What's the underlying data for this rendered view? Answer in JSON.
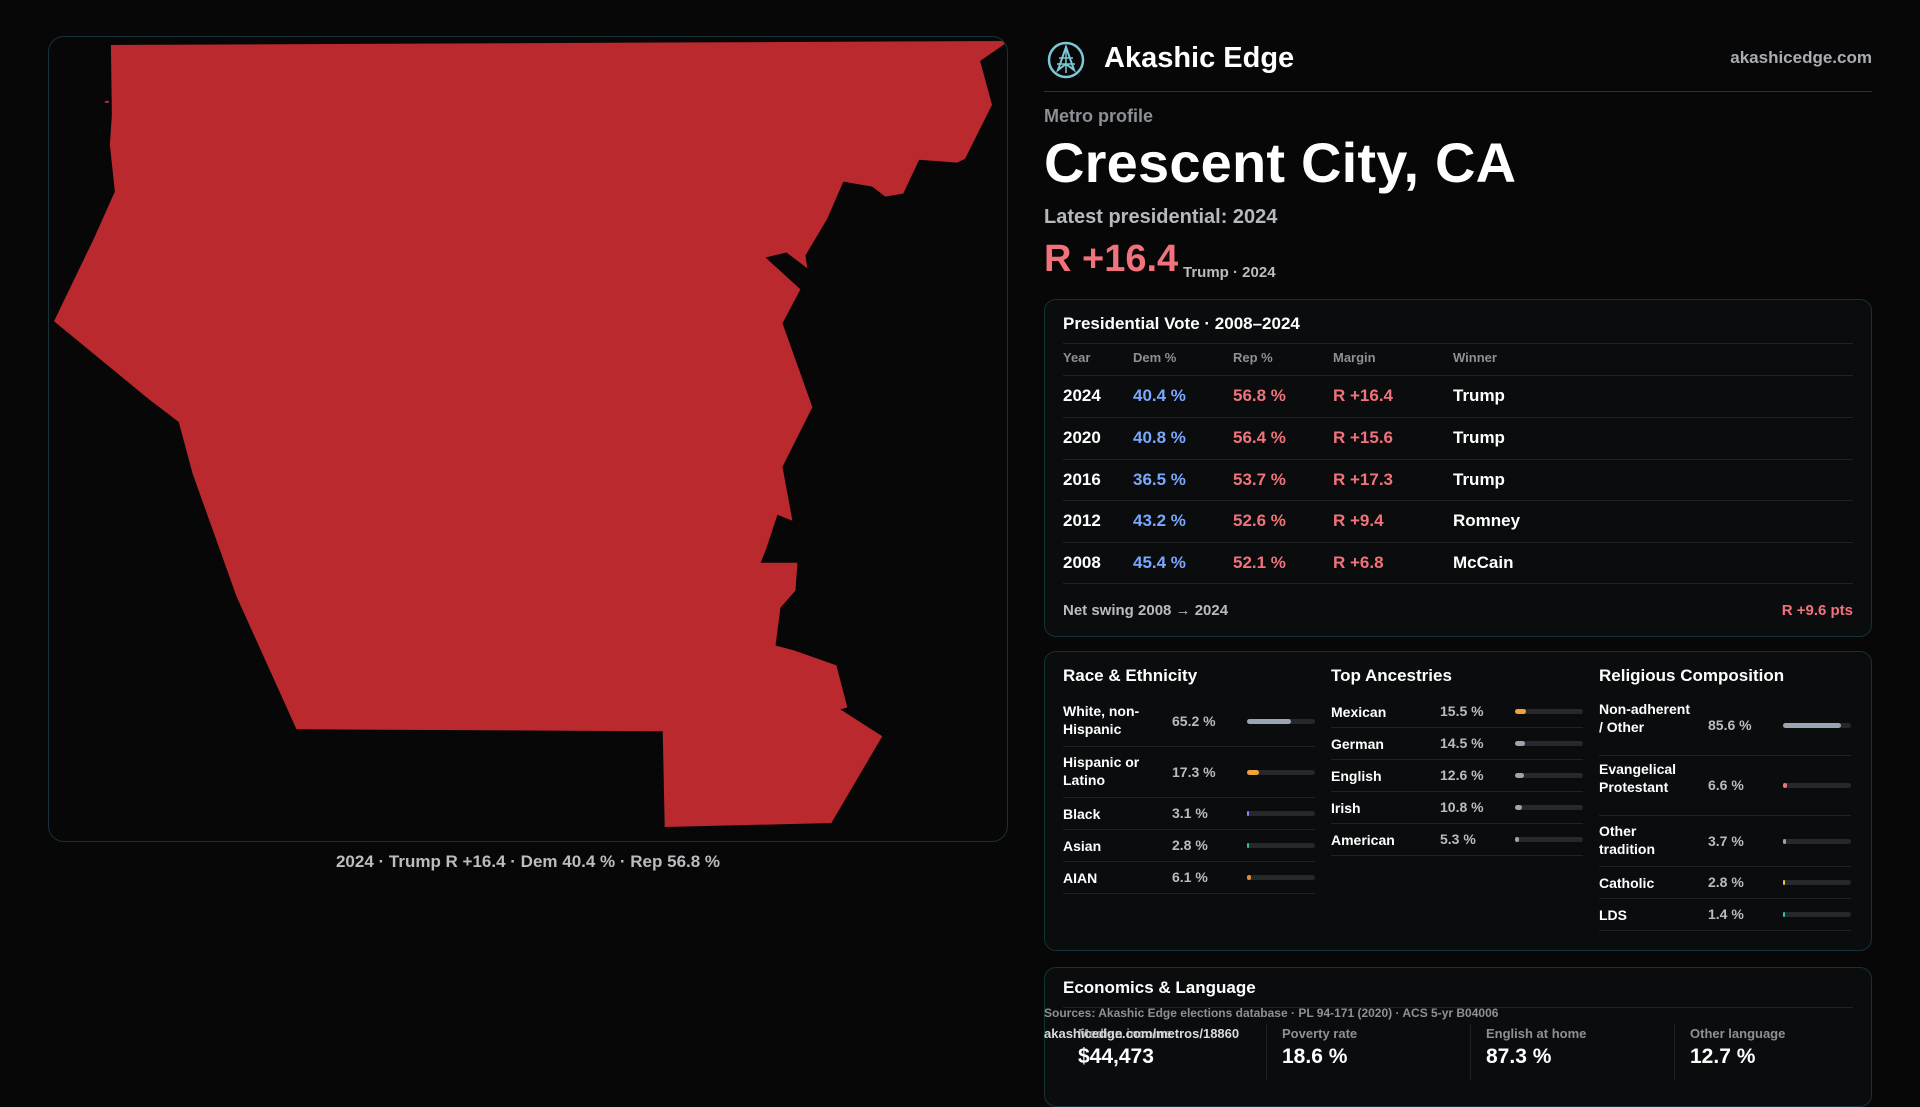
{
  "brand": {
    "name": "Akashic Edge",
    "url": "akashicedge.com",
    "logo_icon": "compass-tree-icon"
  },
  "profile": {
    "eyebrow": "Metro profile",
    "city": "Crescent City, CA",
    "latest_label": "Latest presidential: 2024",
    "margin": "R +16.4",
    "margin_sub": "Trump · 2024"
  },
  "map": {
    "fill_color": "#b9292d",
    "caption": "2024 · Trump R +16.4 · Dem 40.4 % · Rep 56.8 %"
  },
  "votes": {
    "title": "Presidential Vote · 2008–2024",
    "headers": {
      "year": "Year",
      "dem": "Dem %",
      "rep": "Rep %",
      "margin": "Margin",
      "winner": "Winner"
    },
    "rows": [
      {
        "year": "2024",
        "dem": "40.4 %",
        "rep": "56.8 %",
        "margin": "R +16.4",
        "winner": "Trump"
      },
      {
        "year": "2020",
        "dem": "40.8 %",
        "rep": "56.4 %",
        "margin": "R +15.6",
        "winner": "Trump"
      },
      {
        "year": "2016",
        "dem": "36.5 %",
        "rep": "53.7 %",
        "margin": "R +17.3",
        "winner": "Trump"
      },
      {
        "year": "2012",
        "dem": "43.2 %",
        "rep": "52.6 %",
        "margin": "R +9.4",
        "winner": "Romney"
      },
      {
        "year": "2008",
        "dem": "45.4 %",
        "rep": "52.1 %",
        "margin": "R +6.8",
        "winner": "McCain"
      }
    ],
    "swing_label": "Net swing 2008 → 2024",
    "swing_value": "R +9.6 pts"
  },
  "race": {
    "title": "Race & Ethnicity",
    "items": [
      {
        "label": "White, non-Hispanic",
        "value": "65.2 %",
        "share": 0.652,
        "color": "#9aa4b2"
      },
      {
        "label": "Hispanic or Latino",
        "value": "17.3 %",
        "share": 0.173,
        "color": "#f0a13a"
      },
      {
        "label": "Black",
        "value": "3.1 %",
        "share": 0.031,
        "color": "#8a84ff"
      },
      {
        "label": "Asian",
        "value": "2.8 %",
        "share": 0.028,
        "color": "#35c28a"
      },
      {
        "label": "AIAN",
        "value": "6.1 %",
        "share": 0.061,
        "color": "#e08a3a"
      }
    ]
  },
  "ancestry": {
    "title": "Top Ancestries",
    "items": [
      {
        "label": "Mexican",
        "value": "15.5 %",
        "share": 0.155,
        "color": "#f0a13a"
      },
      {
        "label": "German",
        "value": "14.5 %",
        "share": 0.145,
        "color": "#9aa4b2"
      },
      {
        "label": "English",
        "value": "12.6 %",
        "share": 0.126,
        "color": "#9aa4b2"
      },
      {
        "label": "Irish",
        "value": "10.8 %",
        "share": 0.108,
        "color": "#9aa4b2"
      },
      {
        "label": "American",
        "value": "5.3 %",
        "share": 0.053,
        "color": "#9aa4b2"
      }
    ]
  },
  "religion": {
    "title": "Religious Composition",
    "items": [
      {
        "label": "Non-adherent / Other",
        "value": "85.6 %",
        "share": 0.856,
        "color": "#9aa4b2"
      },
      {
        "label": "Evangelical Protestant",
        "value": "6.6 %",
        "share": 0.066,
        "color": "#f1727a"
      },
      {
        "label": "Other tradition",
        "value": "3.7 %",
        "share": 0.037,
        "color": "#9aa4b2"
      },
      {
        "label": "Catholic",
        "value": "2.8 %",
        "share": 0.028,
        "color": "#f0c13a"
      },
      {
        "label": "LDS",
        "value": "1.4 %",
        "share": 0.014,
        "color": "#35c2b0"
      }
    ]
  },
  "economics": {
    "title": "Economics & Language",
    "stats": [
      {
        "label": "Median income",
        "value": "$44,473"
      },
      {
        "label": "Poverty rate",
        "value": "18.6 %"
      },
      {
        "label": "English at home",
        "value": "87.3 %"
      },
      {
        "label": "Other language",
        "value": "12.7 %"
      }
    ]
  },
  "footer": {
    "sources": "Sources: Akashic Edge elections database · PL 94-171 (2020) · ACS 5-yr B04006",
    "permalink": "akashicedge.com/metros/18860"
  }
}
